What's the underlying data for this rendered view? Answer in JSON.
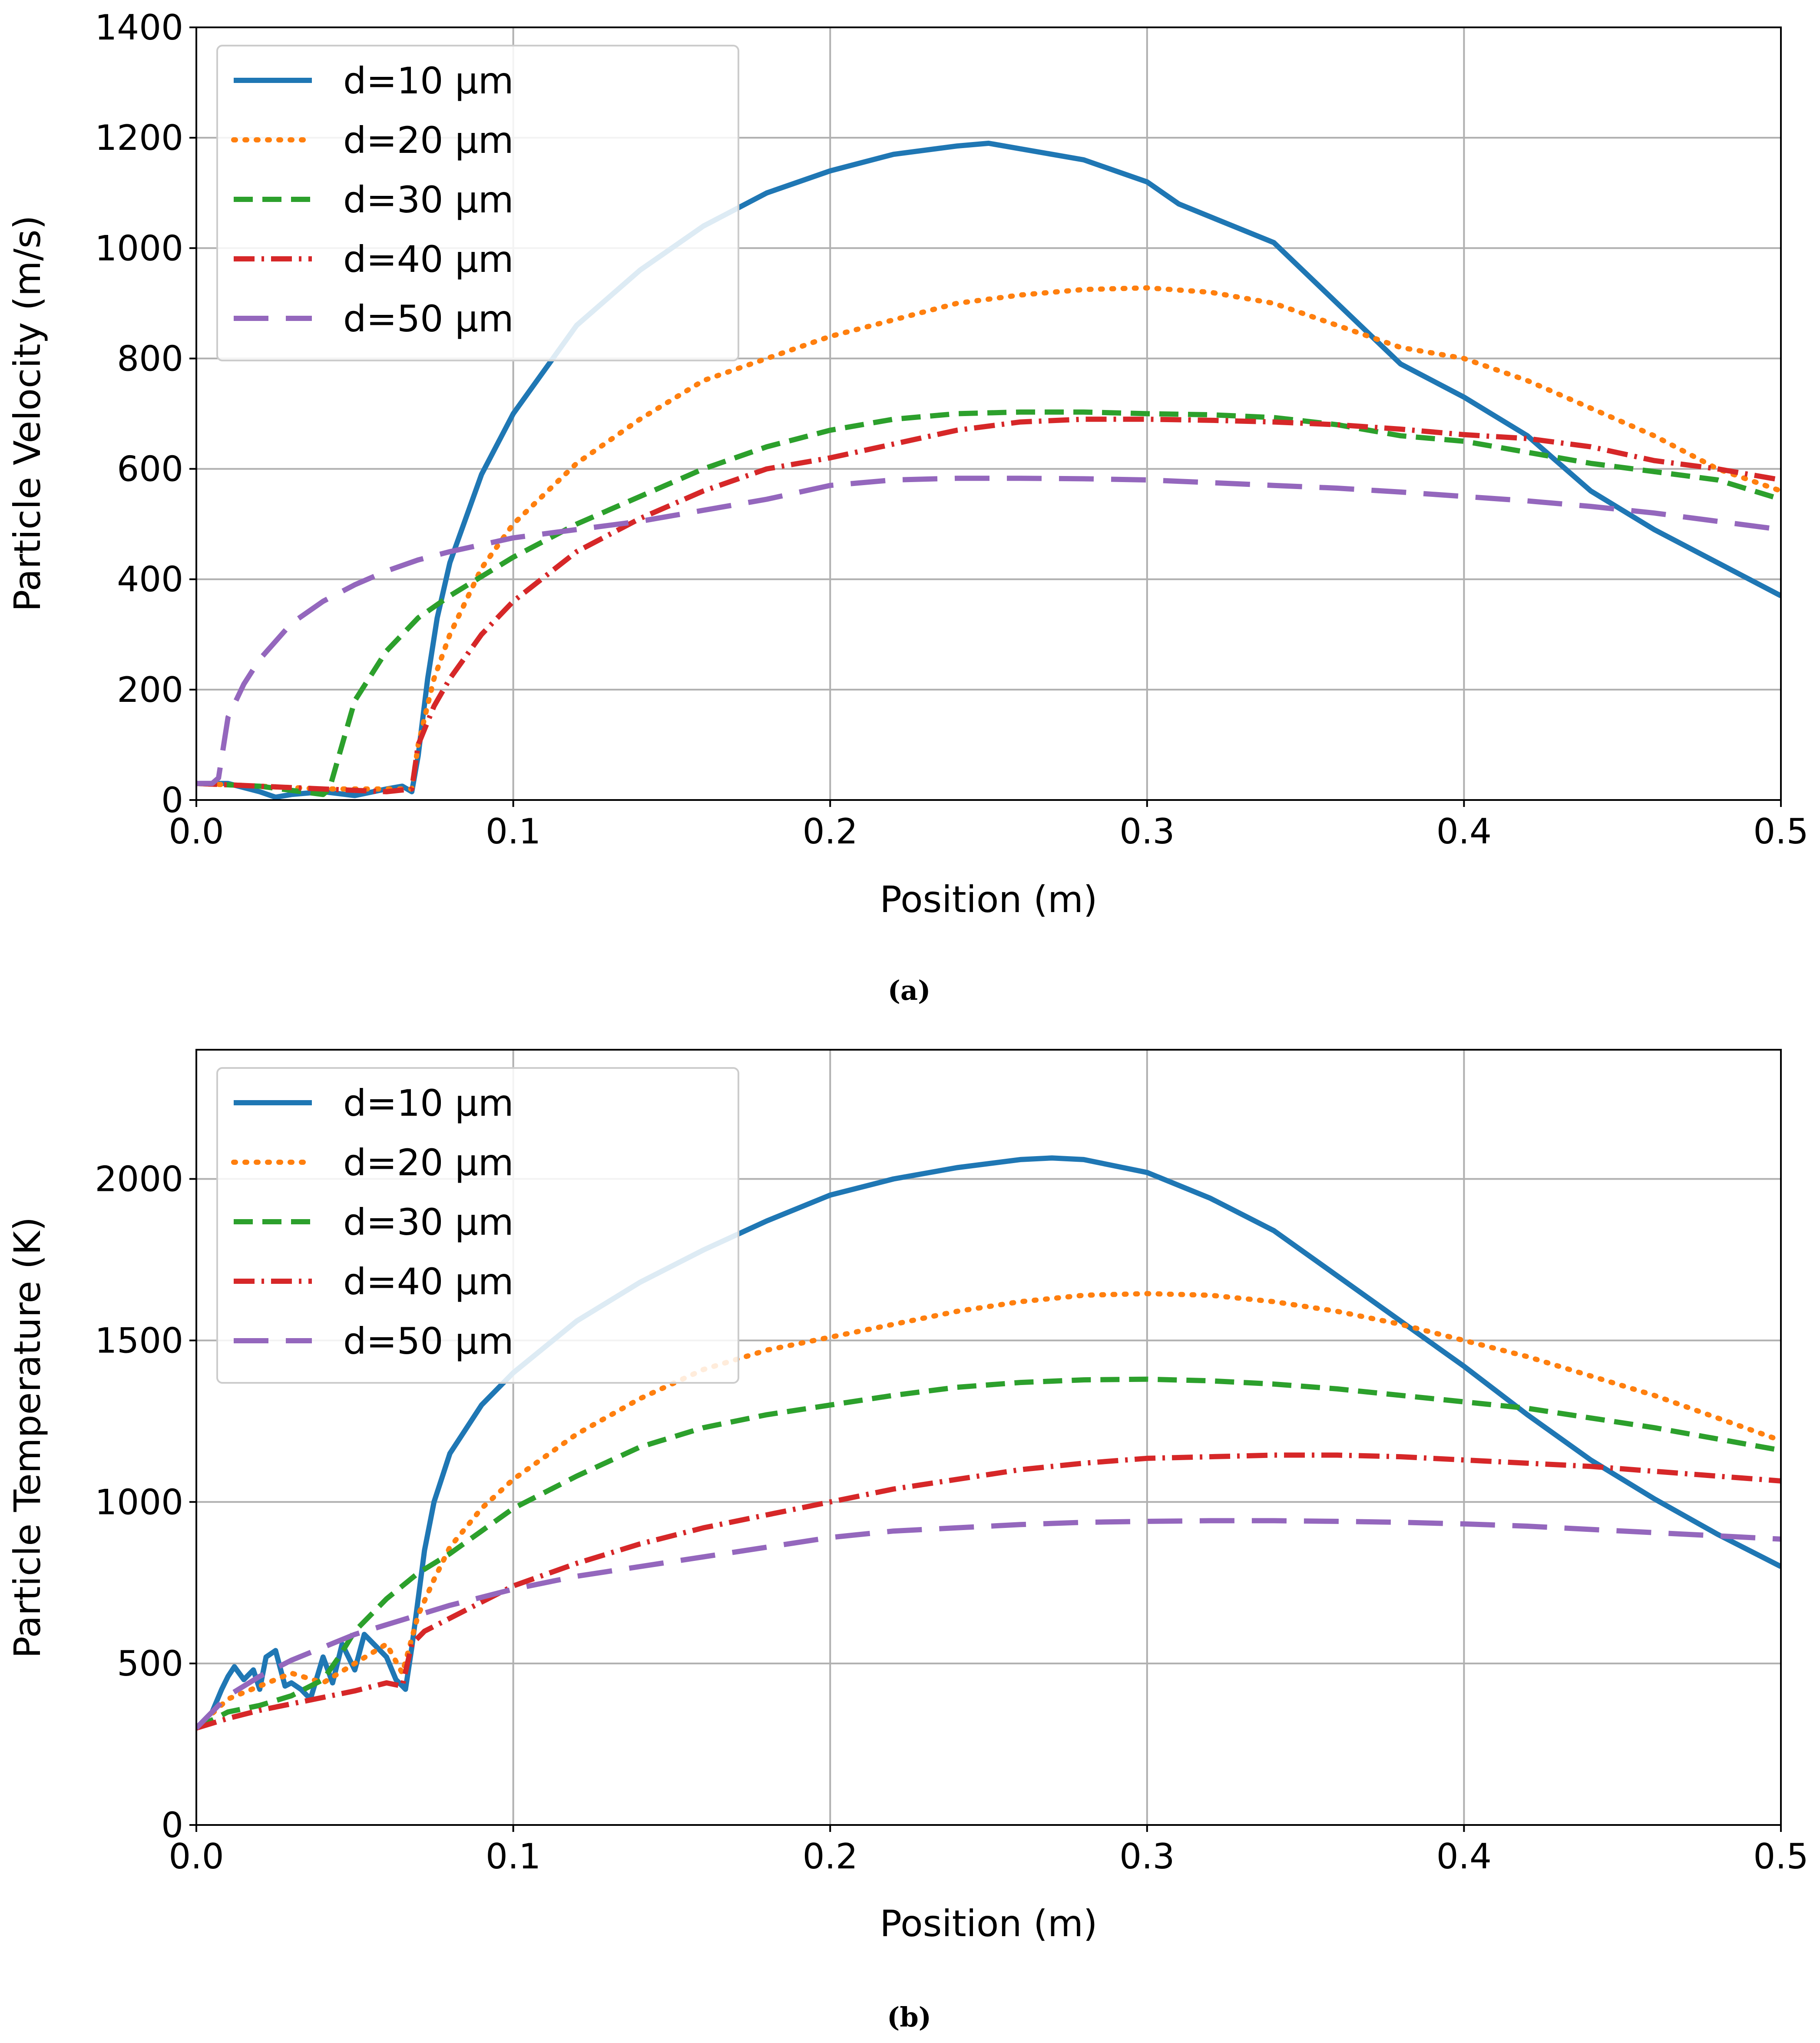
{
  "panels": [
    {
      "caption": "(a)",
      "chart_data": {
        "type": "line",
        "title": "",
        "xlabel": "Position (m)",
        "ylabel": "Particle Velocity (m/s)",
        "xlim": [
          0,
          0.5
        ],
        "ylim": [
          0,
          1400
        ],
        "xticks": [
          0,
          0.1,
          0.2,
          0.3,
          0.4,
          0.5
        ],
        "xtick_labels": [
          "0.0",
          "0.1",
          "0.2",
          "0.3",
          "0.4",
          "0.5"
        ],
        "yticks": [
          0,
          200,
          400,
          600,
          800,
          1000,
          1200,
          1400
        ],
        "ytick_labels": [
          "0",
          "200",
          "400",
          "600",
          "800",
          "1000",
          "1200",
          "1400"
        ],
        "grid": true,
        "legend_position": "top-left",
        "series": [
          {
            "name": "d=10 μm",
            "color": "#1f77b4",
            "style": "solid",
            "x": [
              0,
              0.01,
              0.02,
              0.025,
              0.03,
              0.04,
              0.05,
              0.06,
              0.065,
              0.068,
              0.07,
              0.073,
              0.076,
              0.08,
              0.09,
              0.1,
              0.12,
              0.14,
              0.16,
              0.18,
              0.2,
              0.22,
              0.24,
              0.25,
              0.26,
              0.28,
              0.3,
              0.31,
              0.34,
              0.36,
              0.38,
              0.4,
              0.42,
              0.44,
              0.46,
              0.48,
              0.5
            ],
            "y": [
              30,
              30,
              15,
              5,
              10,
              15,
              8,
              20,
              25,
              15,
              80,
              220,
              330,
              430,
              590,
              700,
              860,
              960,
              1040,
              1100,
              1140,
              1170,
              1185,
              1190,
              1180,
              1160,
              1120,
              1080,
              1010,
              900,
              790,
              730,
              660,
              560,
              490,
              430,
              370
            ]
          },
          {
            "name": "d=20 μm",
            "color": "#ff7f0e",
            "style": "dotted",
            "x": [
              0,
              0.02,
              0.04,
              0.06,
              0.068,
              0.07,
              0.075,
              0.08,
              0.09,
              0.1,
              0.12,
              0.14,
              0.16,
              0.18,
              0.2,
              0.22,
              0.24,
              0.26,
              0.28,
              0.3,
              0.32,
              0.34,
              0.36,
              0.38,
              0.4,
              0.42,
              0.44,
              0.46,
              0.48,
              0.5
            ],
            "y": [
              30,
              25,
              20,
              20,
              20,
              100,
              220,
              300,
              420,
              500,
              610,
              690,
              760,
              800,
              840,
              870,
              900,
              915,
              925,
              928,
              920,
              900,
              860,
              820,
              800,
              760,
              710,
              660,
              600,
              560
            ]
          },
          {
            "name": "d=30 μm",
            "color": "#2ca02c",
            "style": "dashed",
            "x": [
              0,
              0.02,
              0.04,
              0.042,
              0.045,
              0.05,
              0.06,
              0.07,
              0.08,
              0.1,
              0.12,
              0.14,
              0.16,
              0.18,
              0.2,
              0.22,
              0.24,
              0.26,
              0.28,
              0.3,
              0.32,
              0.34,
              0.36,
              0.38,
              0.4,
              0.42,
              0.44,
              0.46,
              0.48,
              0.5
            ],
            "y": [
              30,
              25,
              10,
              20,
              80,
              180,
              270,
              330,
              370,
              440,
              500,
              550,
              600,
              640,
              670,
              690,
              700,
              703,
              703,
              700,
              698,
              693,
              680,
              660,
              650,
              630,
              610,
              595,
              580,
              545
            ]
          },
          {
            "name": "d=40 μm",
            "color": "#d62728",
            "style": "dashdot",
            "x": [
              0,
              0.02,
              0.04,
              0.06,
              0.068,
              0.07,
              0.075,
              0.08,
              0.09,
              0.1,
              0.12,
              0.14,
              0.16,
              0.18,
              0.2,
              0.22,
              0.24,
              0.26,
              0.28,
              0.3,
              0.32,
              0.34,
              0.36,
              0.38,
              0.4,
              0.42,
              0.44,
              0.46,
              0.48,
              0.5
            ],
            "y": [
              30,
              25,
              20,
              15,
              20,
              100,
              170,
              220,
              300,
              360,
              450,
              510,
              560,
              600,
              620,
              645,
              670,
              685,
              690,
              690,
              688,
              685,
              680,
              672,
              662,
              655,
              640,
              615,
              600,
              580
            ]
          },
          {
            "name": "d=50 μm",
            "color": "#9467bd",
            "style": "longdash",
            "x": [
              0,
              0.005,
              0.007,
              0.01,
              0.015,
              0.02,
              0.03,
              0.04,
              0.05,
              0.06,
              0.07,
              0.08,
              0.1,
              0.12,
              0.14,
              0.16,
              0.18,
              0.2,
              0.22,
              0.24,
              0.26,
              0.28,
              0.3,
              0.32,
              0.34,
              0.36,
              0.38,
              0.4,
              0.42,
              0.44,
              0.46,
              0.48,
              0.5
            ],
            "y": [
              30,
              30,
              40,
              150,
              210,
              255,
              320,
              360,
              390,
              415,
              435,
              450,
              475,
              490,
              505,
              525,
              545,
              570,
              580,
              583,
              583,
              582,
              580,
              575,
              570,
              565,
              558,
              550,
              542,
              532,
              520,
              505,
              490
            ]
          }
        ]
      }
    },
    {
      "caption": "(b)",
      "chart_data": {
        "type": "line",
        "title": "",
        "xlabel": "Position (m)",
        "ylabel": "Particle Temperature (K)",
        "xlim": [
          0,
          0.5
        ],
        "ylim": [
          0,
          2400
        ],
        "xticks": [
          0,
          0.1,
          0.2,
          0.3,
          0.4,
          0.5
        ],
        "xtick_labels": [
          "0.0",
          "0.1",
          "0.2",
          "0.3",
          "0.4",
          "0.5"
        ],
        "yticks": [
          0,
          500,
          1000,
          1500,
          2000
        ],
        "ytick_labels": [
          "0",
          "500",
          "1000",
          "1500",
          "2000"
        ],
        "grid": true,
        "legend_position": "top-left",
        "series": [
          {
            "name": "d=10 μm",
            "color": "#1f77b4",
            "style": "solid",
            "x": [
              0,
              0.005,
              0.008,
              0.01,
              0.012,
              0.015,
              0.018,
              0.02,
              0.022,
              0.025,
              0.028,
              0.03,
              0.033,
              0.036,
              0.04,
              0.043,
              0.046,
              0.05,
              0.053,
              0.056,
              0.06,
              0.063,
              0.066,
              0.068,
              0.07,
              0.072,
              0.075,
              0.08,
              0.09,
              0.1,
              0.12,
              0.14,
              0.16,
              0.18,
              0.2,
              0.22,
              0.24,
              0.26,
              0.27,
              0.28,
              0.3,
              0.32,
              0.34,
              0.36,
              0.38,
              0.4,
              0.42,
              0.44,
              0.46,
              0.48,
              0.5
            ],
            "y": [
              300,
              350,
              420,
              460,
              490,
              450,
              480,
              420,
              520,
              540,
              430,
              440,
              420,
              390,
              520,
              440,
              560,
              480,
              590,
              560,
              520,
              450,
              420,
              550,
              700,
              850,
              1000,
              1150,
              1300,
              1400,
              1560,
              1680,
              1780,
              1870,
              1950,
              2000,
              2035,
              2060,
              2065,
              2060,
              2020,
              1940,
              1840,
              1700,
              1560,
              1420,
              1270,
              1130,
              1010,
              900,
              800
            ]
          },
          {
            "name": "d=20 μm",
            "color": "#ff7f0e",
            "style": "dotted",
            "x": [
              0,
              0.01,
              0.02,
              0.03,
              0.04,
              0.05,
              0.06,
              0.065,
              0.07,
              0.075,
              0.08,
              0.09,
              0.1,
              0.12,
              0.14,
              0.16,
              0.18,
              0.2,
              0.22,
              0.24,
              0.26,
              0.28,
              0.3,
              0.32,
              0.34,
              0.36,
              0.38,
              0.4,
              0.42,
              0.44,
              0.46,
              0.48,
              0.5
            ],
            "y": [
              300,
              390,
              430,
              470,
              440,
              500,
              560,
              470,
              650,
              760,
              860,
              980,
              1070,
              1210,
              1320,
              1410,
              1470,
              1510,
              1550,
              1590,
              1620,
              1640,
              1645,
              1640,
              1620,
              1590,
              1550,
              1500,
              1450,
              1390,
              1330,
              1260,
              1190
            ]
          },
          {
            "name": "d=30 μm",
            "color": "#2ca02c",
            "style": "dashed",
            "x": [
              0,
              0.01,
              0.02,
              0.03,
              0.04,
              0.045,
              0.05,
              0.06,
              0.07,
              0.08,
              0.09,
              0.1,
              0.12,
              0.14,
              0.16,
              0.18,
              0.2,
              0.22,
              0.24,
              0.26,
              0.28,
              0.3,
              0.32,
              0.34,
              0.36,
              0.38,
              0.4,
              0.42,
              0.44,
              0.46,
              0.48,
              0.5
            ],
            "y": [
              300,
              350,
              370,
              400,
              450,
              520,
              600,
              700,
              780,
              840,
              910,
              980,
              1080,
              1170,
              1230,
              1270,
              1300,
              1330,
              1355,
              1370,
              1378,
              1380,
              1375,
              1365,
              1350,
              1330,
              1310,
              1290,
              1260,
              1230,
              1195,
              1160
            ]
          },
          {
            "name": "d=40 μm",
            "color": "#d62728",
            "style": "dashdot",
            "x": [
              0,
              0.01,
              0.02,
              0.03,
              0.04,
              0.05,
              0.06,
              0.065,
              0.068,
              0.072,
              0.08,
              0.1,
              0.12,
              0.14,
              0.16,
              0.18,
              0.2,
              0.22,
              0.24,
              0.26,
              0.28,
              0.3,
              0.32,
              0.34,
              0.36,
              0.38,
              0.4,
              0.42,
              0.44,
              0.46,
              0.48,
              0.5
            ],
            "y": [
              300,
              330,
              355,
              375,
              395,
              415,
              440,
              430,
              560,
              600,
              640,
              740,
              810,
              870,
              920,
              960,
              1000,
              1040,
              1070,
              1100,
              1120,
              1135,
              1140,
              1145,
              1145,
              1140,
              1130,
              1120,
              1110,
              1095,
              1080,
              1065
            ]
          },
          {
            "name": "d=50 μm",
            "color": "#9467bd",
            "style": "longdash",
            "x": [
              0,
              0.01,
              0.02,
              0.03,
              0.04,
              0.05,
              0.06,
              0.07,
              0.08,
              0.1,
              0.12,
              0.14,
              0.16,
              0.18,
              0.2,
              0.22,
              0.24,
              0.26,
              0.28,
              0.3,
              0.32,
              0.34,
              0.36,
              0.38,
              0.4,
              0.42,
              0.44,
              0.46,
              0.48,
              0.5
            ],
            "y": [
              300,
              400,
              460,
              510,
              550,
              590,
              620,
              650,
              680,
              730,
              770,
              800,
              830,
              860,
              890,
              910,
              920,
              930,
              937,
              940,
              942,
              942,
              940,
              937,
              932,
              925,
              915,
              905,
              895,
              885
            ]
          }
        ]
      }
    }
  ]
}
